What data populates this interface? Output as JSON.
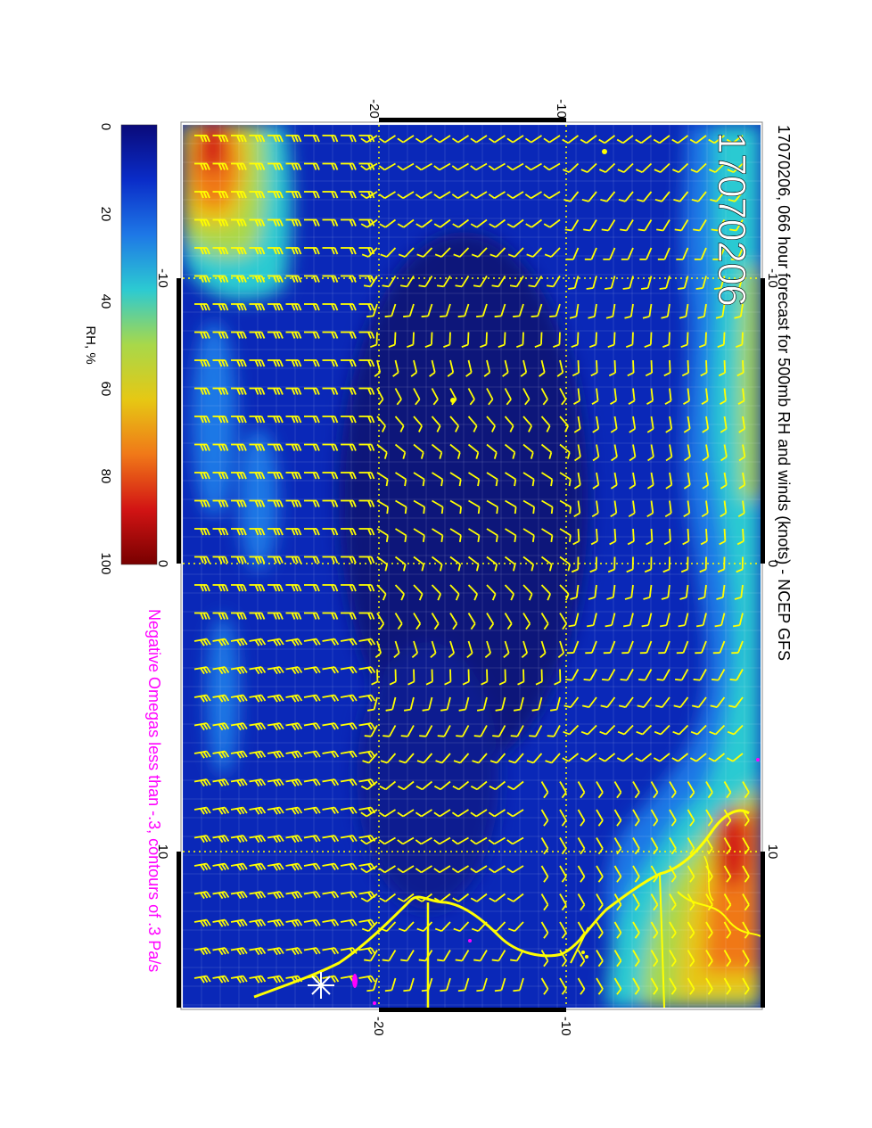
{
  "title": "17070206, 066 hour forecast for 500mb RH and winds (knots) - NCEP GFS",
  "stamp": "17070206",
  "note": "Negative Omegas less than -.3, contours of .3 Pa/s",
  "colorbar": {
    "label": "RH, %",
    "ticks": [
      "0",
      "20",
      "40",
      "60",
      "80",
      "100"
    ],
    "stops": [
      "#0a0a7a",
      "#0a2cc8",
      "#1e78e6",
      "#2ccad2",
      "#a8d84a",
      "#e6c814",
      "#f07818",
      "#d21414",
      "#780000"
    ]
  },
  "axes": {
    "top_ticks": [
      "-20",
      "-10"
    ],
    "bottom_ticks": [
      "-20",
      "-10"
    ],
    "left_ticks": [
      "-10",
      "0",
      "10"
    ],
    "right_ticks": [
      "-10",
      "0",
      "10"
    ]
  },
  "colors": {
    "barb": "#ffff00",
    "coast": "#ffff00",
    "title_text": "#000000",
    "note_text": "#ff00ff",
    "grid": "#ffff00"
  }
}
